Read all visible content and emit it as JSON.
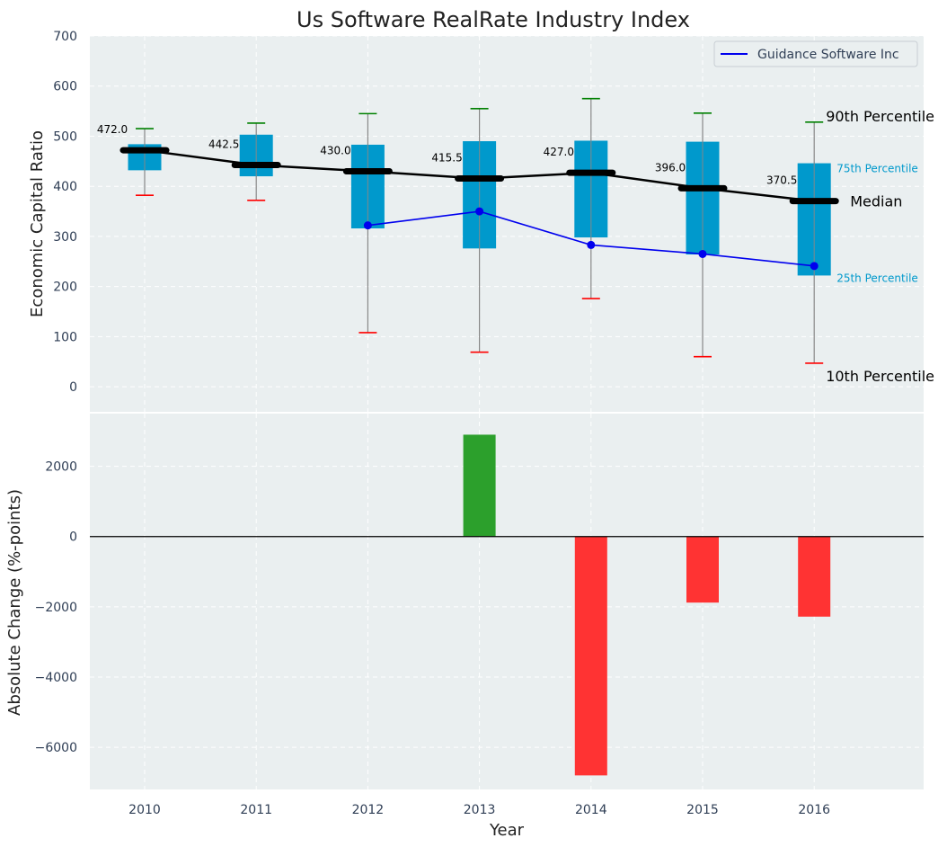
{
  "chart_data": {
    "title": "Us Software RealRate Industry Index",
    "xlabel": "Year",
    "categories": [
      "2010",
      "2011",
      "2012",
      "2013",
      "2014",
      "2015",
      "2016"
    ],
    "colors": {
      "panel_bg": "#eaeff0",
      "box": "#0099cc",
      "whisker": "#888888",
      "p90_cap": "#008000",
      "p10_cap": "#ff0000",
      "median": "#000000",
      "company": "#0000ee",
      "bar_positive": "#2ca02c",
      "bar_negative": "#ff3333",
      "pct_label": "#0099cc"
    },
    "top": {
      "type": "box",
      "ylabel": "Economic Capital Ratio",
      "ylim": [
        -50,
        700
      ],
      "yticks": [
        0,
        100,
        200,
        300,
        400,
        500,
        600,
        700
      ],
      "p10": [
        382,
        372,
        108,
        69,
        176,
        60,
        47
      ],
      "p25": [
        432,
        420,
        316,
        276,
        298,
        264,
        222
      ],
      "median": [
        472.0,
        442.5,
        430.0,
        415.5,
        427.0,
        396.0,
        370.5
      ],
      "p75": [
        484,
        503,
        483,
        490,
        491,
        489,
        446
      ],
      "p90": [
        515,
        526,
        545,
        555,
        575,
        546,
        528
      ],
      "median_labels": [
        "472.0",
        "442.5",
        "430.0",
        "415.5",
        "427.0",
        "396.0",
        "370.5"
      ],
      "company": {
        "name": "Guidance Software Inc",
        "values": [
          null,
          null,
          322,
          350,
          283,
          265,
          241
        ]
      },
      "annotations": {
        "p90": "90th Percentile",
        "p75": "75th Percentile",
        "median": "Median",
        "p25": "25th Percentile",
        "p10": "10th Percentile"
      }
    },
    "bottom": {
      "type": "bar",
      "ylabel": "Absolute Change (%-points)",
      "ylim": [
        -7200,
        3500
      ],
      "yticks": [
        -6000,
        -4000,
        -2000,
        0,
        2000
      ],
      "ytick_labels": [
        "−6000",
        "−4000",
        "−2000",
        "0",
        "2000"
      ],
      "values": [
        null,
        null,
        null,
        2900,
        -6800,
        -1880,
        -2280
      ]
    }
  }
}
